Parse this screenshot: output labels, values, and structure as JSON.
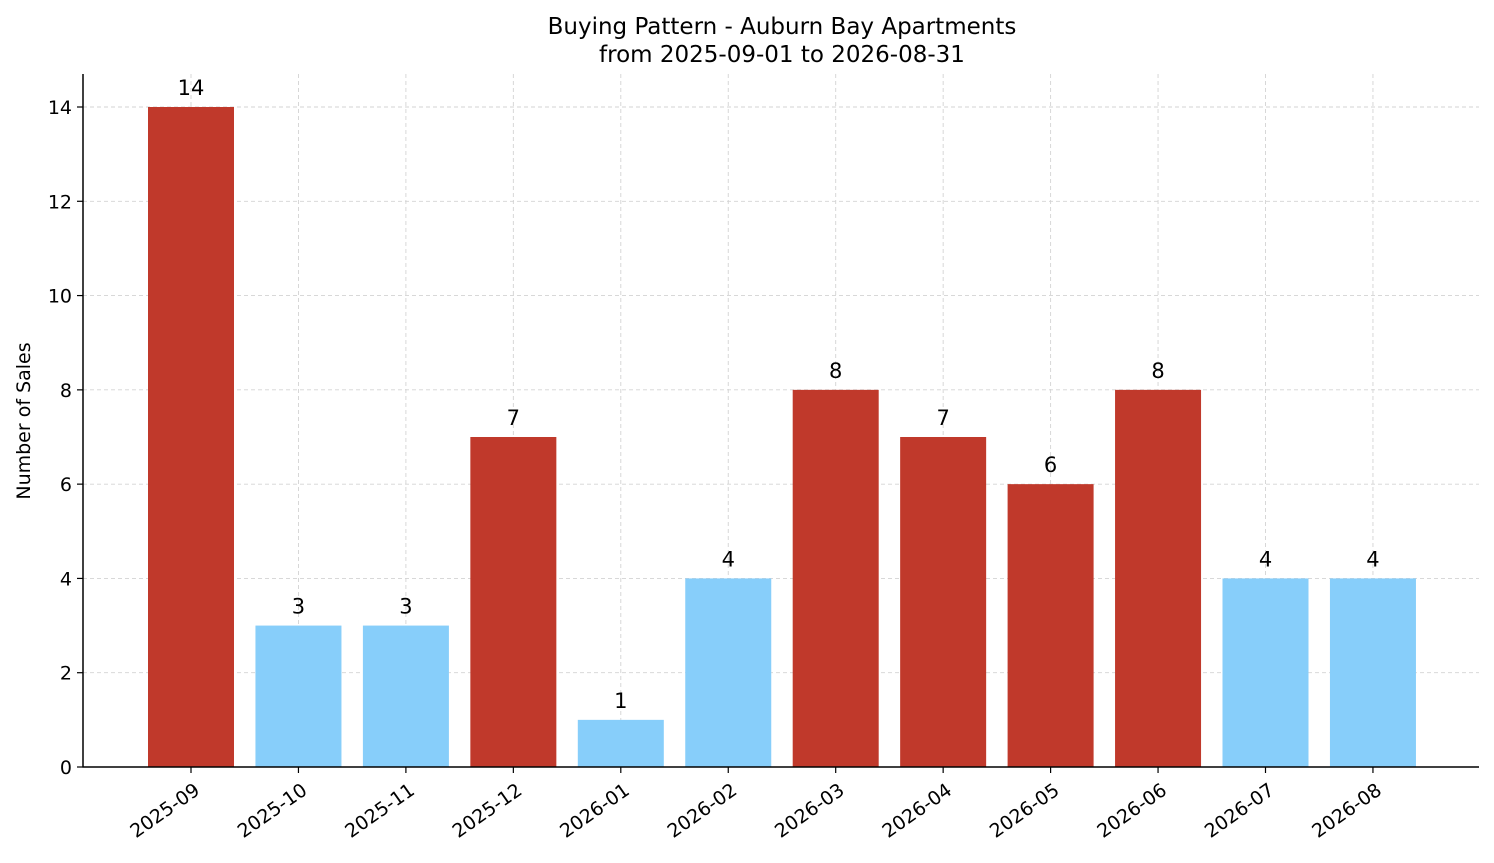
{
  "chart_data": {
    "type": "bar",
    "title": "Buying Pattern - Auburn Bay Apartments",
    "subtitle": "from 2025-09-01 to 2026-08-31",
    "xlabel": "",
    "ylabel": "Number of Sales",
    "ylim": [
      0,
      14.7
    ],
    "yticks": [
      0,
      2,
      4,
      6,
      8,
      10,
      12,
      14
    ],
    "grid": true,
    "categories": [
      "2025-09",
      "2025-10",
      "2025-11",
      "2025-12",
      "2026-01",
      "2026-02",
      "2026-03",
      "2026-04",
      "2026-05",
      "2026-06",
      "2026-07",
      "2026-08"
    ],
    "values": [
      14,
      3,
      3,
      7,
      1,
      4,
      8,
      7,
      6,
      8,
      4,
      4
    ],
    "colors": {
      "high": "#c0392b",
      "low": "#87cefa"
    },
    "color_threshold": 5
  }
}
